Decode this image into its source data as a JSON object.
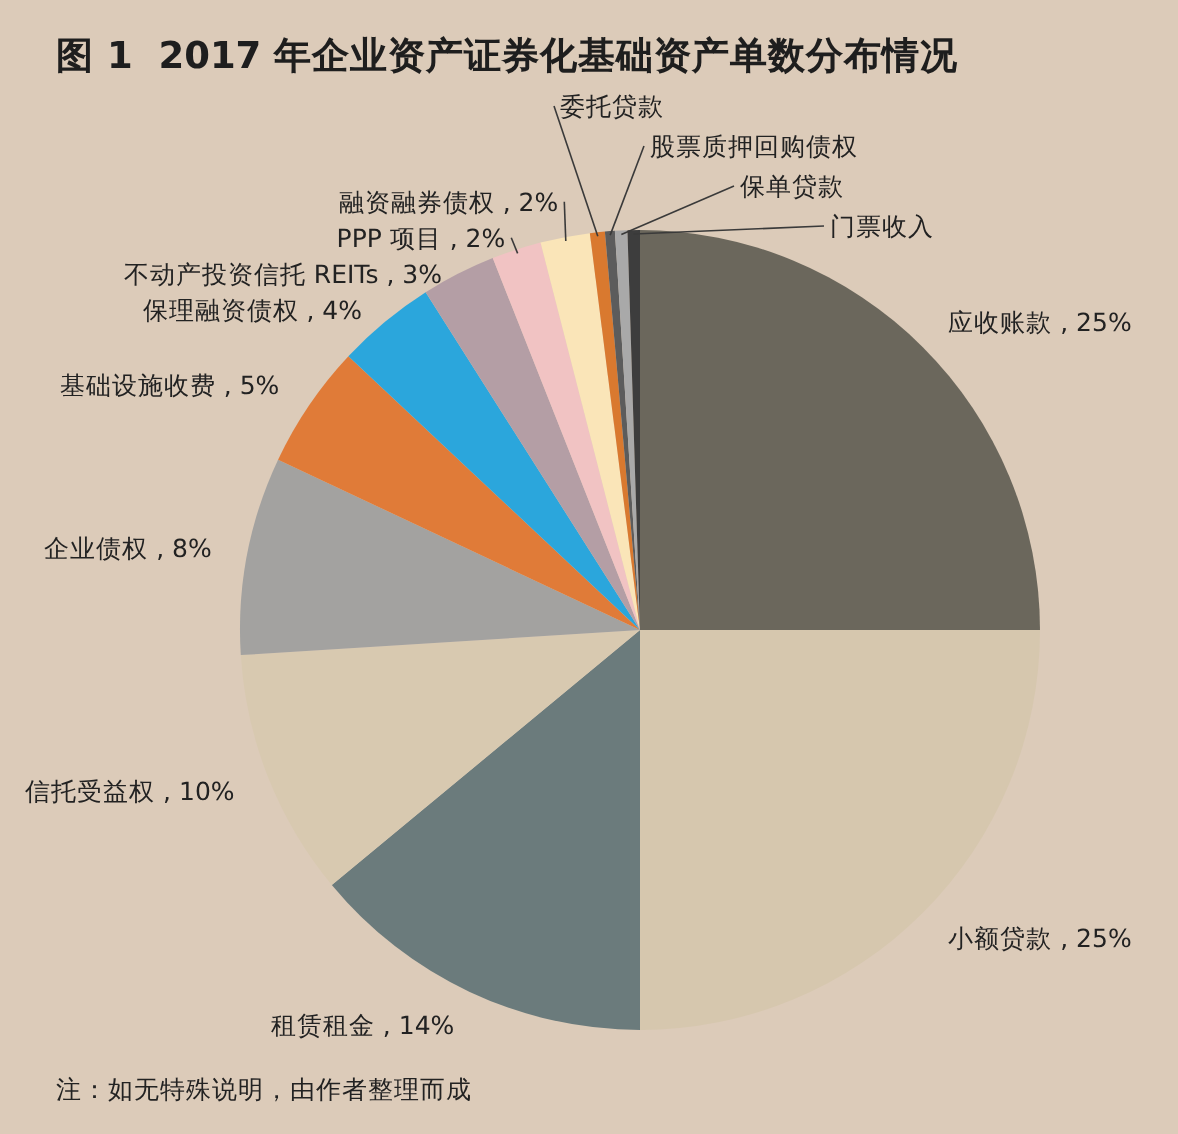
{
  "chart_data": {
    "type": "pie",
    "title": "图 1  2017 年企业资产证券化基础资产单数分布情况",
    "categories": [
      "应收账款",
      "小额贷款",
      "租赁租金",
      "信托受益权",
      "企业债权",
      "基础设施收费",
      "保理融资债权",
      "不动产投资信托 REITs",
      "PPP 项目",
      "融资融券债权",
      "委托贷款",
      "股票质押回购债权",
      "保单贷款",
      "门票收入"
    ],
    "values": [
      25,
      25,
      14,
      10,
      8,
      5,
      4,
      3,
      2,
      2,
      0.6,
      0.4,
      0.5,
      0.5
    ],
    "colors": [
      "#6b675c",
      "#d6c7ae",
      "#6b7b7c",
      "#d8c9b0",
      "#a3a2a0",
      "#e07b38",
      "#2ba6dc",
      "#b49ea5",
      "#f1c3c3",
      "#fae5b8",
      "#d9792f",
      "#5c5c5c",
      "#a9a9a9",
      "#3d3d3d"
    ],
    "value_labels": [
      "25%",
      "25%",
      "14%",
      "10%",
      "8%",
      "5%",
      "4%",
      "3%",
      "2%",
      "2%",
      null,
      null,
      null,
      null
    ],
    "annotations": [
      "注：如无特殊说明，由作者整理而成"
    ]
  }
}
